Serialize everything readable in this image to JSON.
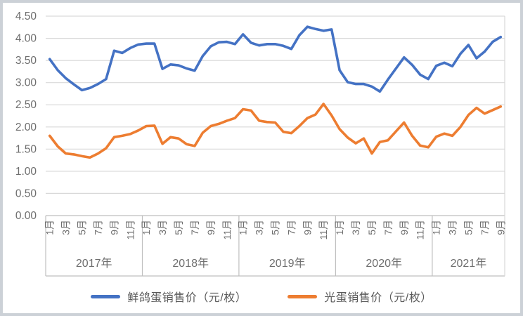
{
  "chart_data": {
    "type": "line",
    "title": "",
    "ylim": [
      0,
      4.5
    ],
    "ytick_step": 0.5,
    "ytick_format": "2dp",
    "grid": true,
    "legend_position": "bottom",
    "years": [
      {
        "label": "2017年",
        "months": 12
      },
      {
        "label": "2018年",
        "months": 12
      },
      {
        "label": "2019年",
        "months": 12
      },
      {
        "label": "2020年",
        "months": 12
      },
      {
        "label": "2021年",
        "months": 9
      }
    ],
    "month_label_suffix": "月",
    "month_tick_interval": 2,
    "series": [
      {
        "name": "鲜鸽蛋销售价（元/枚）",
        "color": "#4472C4",
        "values": [
          3.53,
          3.28,
          3.1,
          2.96,
          2.83,
          2.88,
          2.97,
          3.08,
          3.72,
          3.67,
          3.78,
          3.86,
          3.88,
          3.88,
          3.31,
          3.41,
          3.39,
          3.32,
          3.27,
          3.6,
          3.82,
          3.91,
          3.92,
          3.87,
          4.09,
          3.9,
          3.84,
          3.87,
          3.87,
          3.83,
          3.76,
          4.07,
          4.26,
          4.21,
          4.17,
          4.2,
          3.28,
          3.01,
          2.97,
          2.97,
          2.91,
          2.8,
          3.07,
          3.32,
          3.57,
          3.4,
          3.18,
          3.08,
          3.38,
          3.45,
          3.37,
          3.65,
          3.85,
          3.55,
          3.7,
          3.92,
          4.03
        ]
      },
      {
        "name": "光蛋销售价（元/枚）",
        "color": "#ED7D31",
        "values": [
          1.8,
          1.56,
          1.4,
          1.38,
          1.34,
          1.31,
          1.4,
          1.52,
          1.77,
          1.8,
          1.84,
          1.92,
          2.02,
          2.03,
          1.62,
          1.77,
          1.74,
          1.61,
          1.57,
          1.87,
          2.02,
          2.07,
          2.14,
          2.2,
          2.4,
          2.37,
          2.14,
          2.11,
          2.1,
          1.89,
          1.86,
          2.02,
          2.2,
          2.28,
          2.52,
          2.26,
          1.95,
          1.76,
          1.63,
          1.74,
          1.4,
          1.66,
          1.7,
          1.9,
          2.1,
          1.8,
          1.58,
          1.54,
          1.78,
          1.85,
          1.8,
          2.0,
          2.27,
          2.43,
          2.3,
          2.38,
          2.46
        ]
      }
    ],
    "axis_colors": {
      "gridline": "#d9d9d9",
      "axis_line": "#bfbfbf",
      "label_text": "#6e6e6e"
    }
  }
}
